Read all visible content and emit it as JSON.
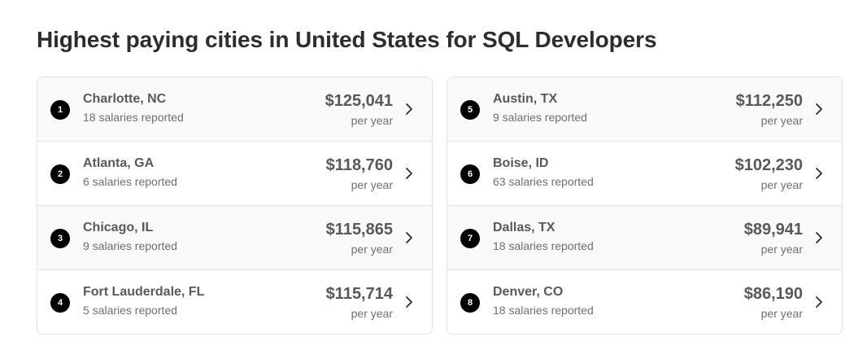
{
  "title": "Highest paying cities in United States for SQL Developers",
  "colors": {
    "badge": "#000000",
    "text": "#2d2d2d",
    "muted": "#6f6f6f",
    "border": "#e4e2e0",
    "row_shade": "#f9f9f9"
  },
  "left": [
    {
      "rank": "1",
      "city": "Charlotte, NC",
      "reported": "18 salaries reported",
      "salary": "$125,041",
      "period": "per year",
      "icon": "chevron-right-icon"
    },
    {
      "rank": "2",
      "city": "Atlanta, GA",
      "reported": "6 salaries reported",
      "salary": "$118,760",
      "period": "per year",
      "icon": "chevron-right-icon"
    },
    {
      "rank": "3",
      "city": "Chicago, IL",
      "reported": "9 salaries reported",
      "salary": "$115,865",
      "period": "per year",
      "icon": "chevron-right-icon"
    },
    {
      "rank": "4",
      "city": "Fort Lauderdale, FL",
      "reported": "5 salaries reported",
      "salary": "$115,714",
      "period": "per year",
      "icon": "chevron-right-icon"
    }
  ],
  "right": [
    {
      "rank": "5",
      "city": "Austin, TX",
      "reported": "9 salaries reported",
      "salary": "$112,250",
      "period": "per year",
      "icon": "chevron-right-icon"
    },
    {
      "rank": "6",
      "city": "Boise, ID",
      "reported": "63 salaries reported",
      "salary": "$102,230",
      "period": "per year",
      "icon": "chevron-right-icon"
    },
    {
      "rank": "7",
      "city": "Dallas, TX",
      "reported": "18 salaries reported",
      "salary": "$89,941",
      "period": "per year",
      "icon": "chevron-right-icon"
    },
    {
      "rank": "8",
      "city": "Denver, CO",
      "reported": "18 salaries reported",
      "salary": "$86,190",
      "period": "per year",
      "icon": "chevron-right-icon"
    }
  ]
}
